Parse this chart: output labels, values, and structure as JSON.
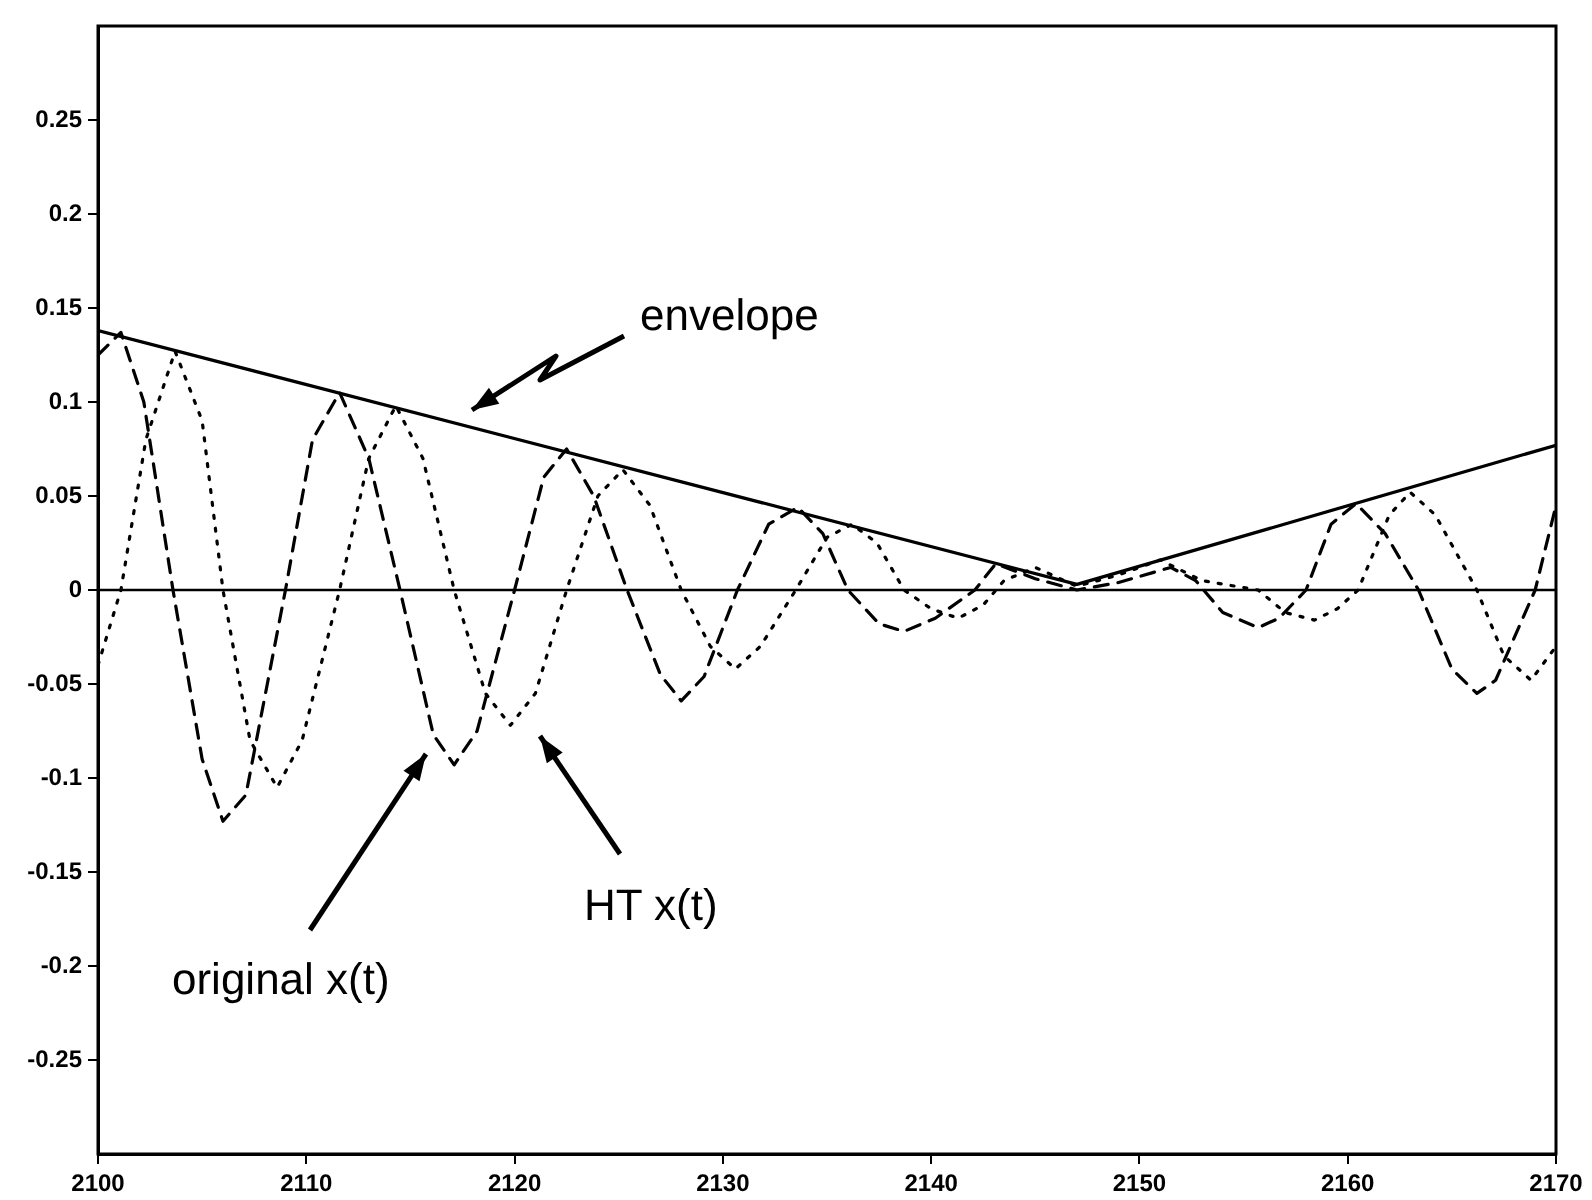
{
  "chart_data": {
    "type": "line",
    "xlim": [
      2100,
      2170
    ],
    "xticks": [
      2100,
      2110,
      2120,
      2130,
      2140,
      2150,
      2160,
      2170
    ],
    "ylim": [
      -0.3,
      0.3
    ],
    "yticks": [
      -0.25,
      -0.2,
      -0.15,
      -0.1,
      -0.05,
      0,
      0.05,
      0.1,
      0.15,
      0.2,
      0.25
    ],
    "grid": false,
    "marker": "none",
    "series": [
      {
        "color": "#000000",
        "line_style": "solid",
        "x": [
          2100,
          2147,
          2170
        ],
        "values": [
          0.138,
          0.003,
          0.077
        ]
      },
      {
        "color": "#000000",
        "line_style": "dashed",
        "x": [
          2100,
          2101.1,
          2102.2,
          2103.6,
          2105,
          2106,
          2107.1,
          2109,
          2110.3,
          2111.6,
          2113,
          2114.5,
          2116.1,
          2117.1,
          2118.2,
          2120,
          2121.4,
          2122.5,
          2123.8,
          2125.4,
          2127,
          2128,
          2129.1,
          2130.7,
          2132.2,
          2133.6,
          2134.8,
          2136,
          2137.5,
          2138.7,
          2140.2,
          2142.1,
          2143.1,
          2145,
          2147,
          2149,
          2151.5,
          2152.7,
          2154,
          2155.7,
          2156.7,
          2158,
          2159.2,
          2160.4,
          2161.8,
          2163.4,
          2165,
          2166.2,
          2167.1,
          2169,
          2170
        ],
        "values": [
          0.125,
          0.137,
          0.1,
          0,
          -0.09,
          -0.123,
          -0.109,
          0,
          0.08,
          0.105,
          0.07,
          0,
          -0.077,
          -0.093,
          -0.075,
          0,
          0.06,
          0.075,
          0.05,
          0,
          -0.045,
          -0.059,
          -0.046,
          0,
          0.035,
          0.044,
          0.03,
          0,
          -0.018,
          -0.022,
          -0.015,
          0,
          0.014,
          0.006,
          0,
          0.004,
          0.012,
          0.005,
          -0.012,
          -0.02,
          -0.015,
          0,
          0.035,
          0.046,
          0.03,
          0,
          -0.042,
          -0.055,
          -0.048,
          0,
          0.045
        ]
      },
      {
        "color": "#000000",
        "line_style": "dotted",
        "x": [
          2100,
          2101.1,
          2102.3,
          2103.7,
          2105,
          2106,
          2107.3,
          2108.6,
          2109.8,
          2111.6,
          2113,
          2114.3,
          2115.6,
          2117.1,
          2118.6,
          2119.8,
          2121,
          2122.5,
          2124,
          2125.2,
          2126.5,
          2128,
          2129.4,
          2130.6,
          2131.8,
          2133.5,
          2135,
          2136.2,
          2137.4,
          2138.7,
          2140,
          2141.3,
          2142.5,
          2143.5,
          2145,
          2147,
          2149,
          2151,
          2153,
          2155.7,
          2157,
          2158.4,
          2159.5,
          2160.5,
          2162,
          2163,
          2164.2,
          2166.2,
          2167.5,
          2168.8,
          2170
        ],
        "values": [
          -0.04,
          0,
          0.08,
          0.127,
          0.09,
          0,
          -0.08,
          -0.105,
          -0.08,
          0,
          0.07,
          0.098,
          0.07,
          0,
          -0.055,
          -0.072,
          -0.055,
          0,
          0.05,
          0.064,
          0.045,
          0,
          -0.03,
          -0.042,
          -0.03,
          0,
          0.028,
          0.035,
          0.025,
          0,
          -0.01,
          -0.015,
          -0.008,
          0.005,
          0.012,
          0.002,
          0.008,
          0.016,
          0.005,
          0,
          -0.012,
          -0.016,
          -0.01,
          0,
          0.04,
          0.052,
          0.04,
          0,
          -0.035,
          -0.048,
          -0.03
        ]
      }
    ],
    "ref_lines": [
      {
        "axis": "y",
        "value": 0,
        "color": "#000000",
        "line_style": "solid"
      }
    ],
    "annotations": [
      "envelope",
      "original x(t)",
      "HT x(t)"
    ]
  }
}
